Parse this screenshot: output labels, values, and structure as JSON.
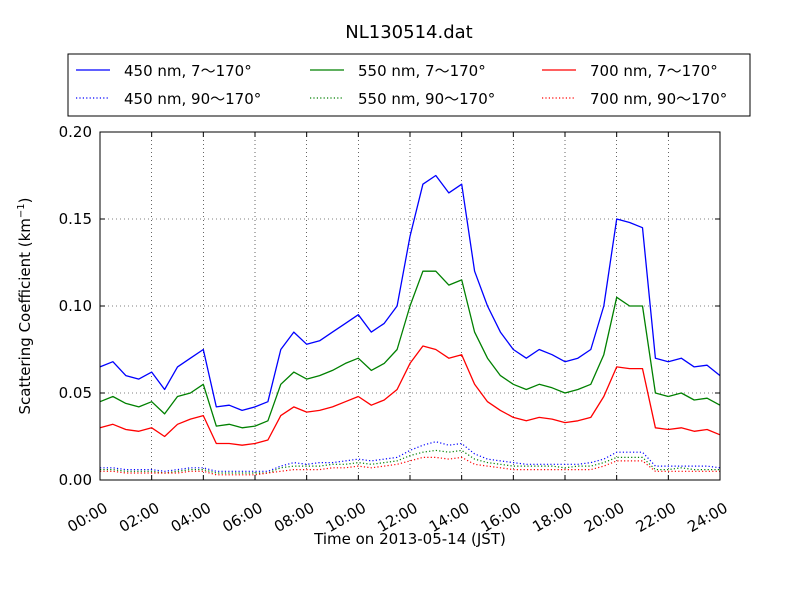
{
  "chart_data": {
    "type": "line",
    "title": "NL130514.dat",
    "xlabel": "Time on 2013-05-14 (JST)",
    "ylabel": "Scattering Coefficient (km",
    "ylabel_sup": "−1",
    "ylabel_close": ")",
    "xlim": [
      0,
      24
    ],
    "ylim": [
      0.0,
      0.2
    ],
    "grid": true,
    "legend_position": "top",
    "x_tick_labels": [
      "00:00",
      "02:00",
      "04:00",
      "06:00",
      "08:00",
      "10:00",
      "12:00",
      "14:00",
      "16:00",
      "18:00",
      "20:00",
      "22:00",
      "24:00"
    ],
    "y_tick_values": [
      0.0,
      0.05,
      0.1,
      0.15,
      0.2
    ],
    "y_tick_labels": [
      "0.00",
      "0.05",
      "0.10",
      "0.15",
      "0.20"
    ],
    "x": [
      0,
      0.5,
      1,
      1.5,
      2,
      2.5,
      3,
      3.5,
      4,
      4.5,
      5,
      5.5,
      6,
      6.5,
      7,
      7.5,
      8,
      8.5,
      9,
      9.5,
      10,
      10.5,
      11,
      11.5,
      12,
      12.5,
      13,
      13.5,
      14,
      14.5,
      15,
      15.5,
      16,
      16.5,
      17,
      17.5,
      18,
      18.5,
      19,
      19.5,
      20,
      20.5,
      21,
      21.5,
      22,
      22.5,
      23,
      23.5,
      24
    ],
    "series": [
      {
        "name": "450 nm, 7～170°",
        "color": "#0000ff",
        "style": "solid",
        "values": [
          0.065,
          0.068,
          0.06,
          0.058,
          0.062,
          0.052,
          0.065,
          0.07,
          0.075,
          0.042,
          0.043,
          0.04,
          0.042,
          0.045,
          0.075,
          0.085,
          0.078,
          0.08,
          0.085,
          0.09,
          0.095,
          0.085,
          0.09,
          0.1,
          0.14,
          0.17,
          0.175,
          0.165,
          0.17,
          0.12,
          0.1,
          0.085,
          0.075,
          0.07,
          0.075,
          0.072,
          0.068,
          0.07,
          0.075,
          0.1,
          0.15,
          0.148,
          0.145,
          0.07,
          0.068,
          0.07,
          0.065,
          0.066,
          0.06
        ]
      },
      {
        "name": "550 nm, 7～170°",
        "color": "#008000",
        "style": "solid",
        "values": [
          0.045,
          0.048,
          0.044,
          0.042,
          0.045,
          0.038,
          0.048,
          0.05,
          0.055,
          0.031,
          0.032,
          0.03,
          0.031,
          0.034,
          0.055,
          0.062,
          0.058,
          0.06,
          0.063,
          0.067,
          0.07,
          0.063,
          0.067,
          0.075,
          0.1,
          0.12,
          0.12,
          0.112,
          0.115,
          0.085,
          0.07,
          0.06,
          0.055,
          0.052,
          0.055,
          0.053,
          0.05,
          0.052,
          0.055,
          0.072,
          0.105,
          0.1,
          0.1,
          0.05,
          0.048,
          0.05,
          0.046,
          0.047,
          0.043
        ]
      },
      {
        "name": "700 nm, 7～170°",
        "color": "#ff0000",
        "style": "solid",
        "values": [
          0.03,
          0.032,
          0.029,
          0.028,
          0.03,
          0.025,
          0.032,
          0.035,
          0.037,
          0.021,
          0.021,
          0.02,
          0.021,
          0.023,
          0.037,
          0.042,
          0.039,
          0.04,
          0.042,
          0.045,
          0.048,
          0.043,
          0.046,
          0.052,
          0.067,
          0.077,
          0.075,
          0.07,
          0.072,
          0.055,
          0.045,
          0.04,
          0.036,
          0.034,
          0.036,
          0.035,
          0.033,
          0.034,
          0.036,
          0.048,
          0.065,
          0.064,
          0.064,
          0.03,
          0.029,
          0.03,
          0.028,
          0.029,
          0.026
        ]
      },
      {
        "name": "450 nm, 90～170°",
        "color": "#0000ff",
        "style": "dotted",
        "values": [
          0.007,
          0.007,
          0.006,
          0.006,
          0.006,
          0.005,
          0.006,
          0.007,
          0.007,
          0.005,
          0.005,
          0.005,
          0.005,
          0.005,
          0.008,
          0.01,
          0.009,
          0.01,
          0.01,
          0.011,
          0.012,
          0.011,
          0.012,
          0.013,
          0.017,
          0.02,
          0.022,
          0.02,
          0.021,
          0.015,
          0.012,
          0.011,
          0.01,
          0.009,
          0.009,
          0.009,
          0.009,
          0.009,
          0.01,
          0.012,
          0.016,
          0.016,
          0.016,
          0.008,
          0.008,
          0.008,
          0.008,
          0.008,
          0.007
        ]
      },
      {
        "name": "550 nm, 90～170°",
        "color": "#008000",
        "style": "dotted",
        "values": [
          0.006,
          0.006,
          0.005,
          0.005,
          0.005,
          0.004,
          0.005,
          0.006,
          0.006,
          0.004,
          0.004,
          0.004,
          0.004,
          0.004,
          0.007,
          0.008,
          0.008,
          0.008,
          0.009,
          0.009,
          0.01,
          0.009,
          0.01,
          0.011,
          0.014,
          0.016,
          0.017,
          0.016,
          0.017,
          0.012,
          0.01,
          0.009,
          0.008,
          0.008,
          0.008,
          0.008,
          0.007,
          0.008,
          0.008,
          0.01,
          0.013,
          0.013,
          0.013,
          0.006,
          0.006,
          0.007,
          0.006,
          0.006,
          0.006
        ]
      },
      {
        "name": "700 nm, 90～170°",
        "color": "#ff0000",
        "style": "dotted",
        "values": [
          0.005,
          0.005,
          0.004,
          0.004,
          0.004,
          0.004,
          0.004,
          0.005,
          0.005,
          0.003,
          0.003,
          0.003,
          0.003,
          0.004,
          0.005,
          0.006,
          0.006,
          0.006,
          0.007,
          0.007,
          0.008,
          0.007,
          0.008,
          0.009,
          0.011,
          0.013,
          0.013,
          0.012,
          0.013,
          0.009,
          0.008,
          0.007,
          0.006,
          0.006,
          0.006,
          0.006,
          0.006,
          0.006,
          0.006,
          0.008,
          0.011,
          0.011,
          0.011,
          0.005,
          0.005,
          0.005,
          0.005,
          0.005,
          0.005
        ]
      }
    ]
  }
}
